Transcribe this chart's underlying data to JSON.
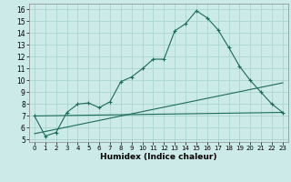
{
  "title": "",
  "xlabel": "Humidex (Indice chaleur)",
  "bg_color": "#cceae7",
  "grid_color": "#aad4d0",
  "line_color": "#1a6b5a",
  "xlim": [
    -0.5,
    23.5
  ],
  "ylim": [
    4.8,
    16.5
  ],
  "xticks": [
    0,
    1,
    2,
    3,
    4,
    5,
    6,
    7,
    8,
    9,
    10,
    11,
    12,
    13,
    14,
    15,
    16,
    17,
    18,
    19,
    20,
    21,
    22,
    23
  ],
  "yticks": [
    5,
    6,
    7,
    8,
    9,
    10,
    11,
    12,
    13,
    14,
    15,
    16
  ],
  "main_x": [
    0,
    1,
    2,
    3,
    4,
    5,
    6,
    7,
    8,
    9,
    10,
    11,
    12,
    13,
    14,
    15,
    16,
    17,
    18,
    19,
    20,
    21,
    22,
    23
  ],
  "main_y": [
    7.0,
    5.3,
    5.6,
    7.3,
    8.0,
    8.1,
    7.7,
    8.2,
    9.9,
    10.3,
    11.0,
    11.8,
    11.8,
    14.2,
    14.8,
    15.9,
    15.3,
    14.3,
    12.8,
    11.2,
    10.0,
    9.0,
    8.0,
    7.3
  ],
  "line2_x": [
    0,
    23
  ],
  "line2_y": [
    7.0,
    7.3
  ],
  "line3_x": [
    0,
    23
  ],
  "line3_y": [
    5.5,
    9.8
  ],
  "figsize": [
    3.2,
    2.0
  ],
  "dpi": 100
}
